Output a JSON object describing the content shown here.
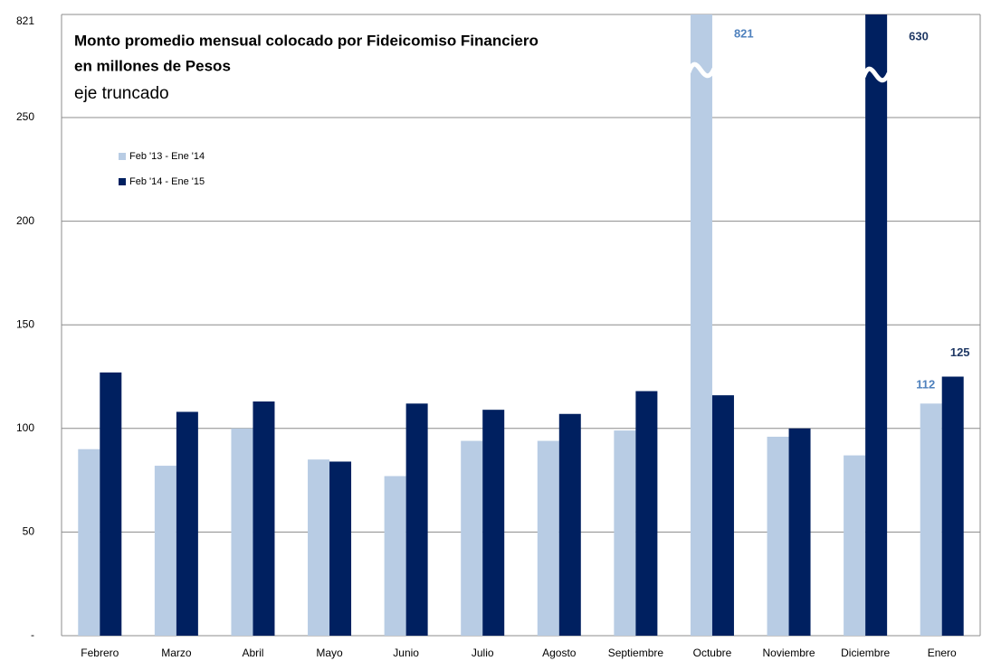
{
  "chart_data": {
    "type": "bar",
    "title": [
      "Monto promedio mensual colocado por Fideicomiso Financiero",
      "en millones de Pesos"
    ],
    "subtitle": "eje truncado",
    "categories": [
      "Febrero",
      "Marzo",
      "Abril",
      "Mayo",
      "Junio",
      "Julio",
      "Agosto",
      "Septiembre",
      "Octubre",
      "Noviembre",
      "Diciembre",
      "Enero"
    ],
    "series": [
      {
        "name": "Feb '13 - Ene '14",
        "color": "#b8cce4",
        "values": [
          90,
          82,
          100,
          85,
          77,
          94,
          94,
          99,
          821,
          96,
          87,
          112
        ],
        "value_labels": [
          null,
          null,
          null,
          null,
          null,
          null,
          null,
          null,
          "821",
          null,
          null,
          "112"
        ],
        "label_color": "#4f81bd"
      },
      {
        "name": "Feb '14 - Ene '15",
        "color": "#002060",
        "values": [
          127,
          108,
          113,
          84,
          112,
          109,
          107,
          118,
          116,
          100,
          630,
          125
        ],
        "value_labels": [
          null,
          null,
          null,
          null,
          null,
          null,
          null,
          null,
          null,
          null,
          "630",
          "125"
        ],
        "label_color": "#1f3864"
      }
    ],
    "ylim": [
      0,
      821
    ],
    "yticks": [
      {
        "value": 0,
        "label": "-"
      },
      50,
      100,
      150,
      200,
      250,
      821
    ],
    "axis_break": true,
    "grid": true,
    "legend": "upper left"
  }
}
